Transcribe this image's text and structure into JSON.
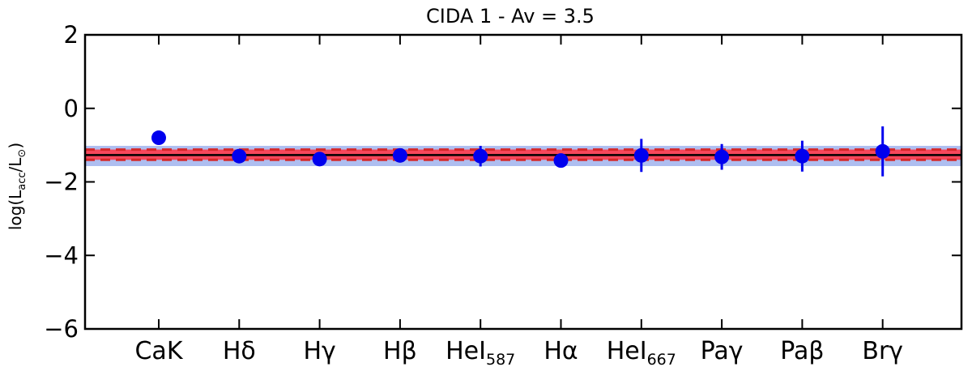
{
  "chart_data": {
    "type": "scatter",
    "title": "CIDA 1 - Av = 3.5",
    "ylabel": {
      "prefix": "log(L",
      "sub1": "acc",
      "mid": "/L",
      "sub2": "⊙",
      "suffix": ")"
    },
    "xlabel": "",
    "ylim": [
      -6,
      2
    ],
    "yticks": [
      2,
      0,
      -2,
      -4,
      -6
    ],
    "ytick_labels": [
      "2",
      "0",
      "−2",
      "−4",
      "−6"
    ],
    "categories": [
      {
        "main": "CaK",
        "sub": ""
      },
      {
        "main": "Hδ",
        "sub": ""
      },
      {
        "main": "Hγ",
        "sub": ""
      },
      {
        "main": "Hβ",
        "sub": ""
      },
      {
        "main": "HeI",
        "sub": "587"
      },
      {
        "main": "Hα",
        "sub": ""
      },
      {
        "main": "HeI",
        "sub": "667"
      },
      {
        "main": "Paγ",
        "sub": ""
      },
      {
        "main": "Paβ",
        "sub": ""
      },
      {
        "main": "Brγ",
        "sub": ""
      }
    ],
    "series": [
      {
        "values": [
          -0.8,
          -1.3,
          -1.38,
          -1.28,
          -1.3,
          -1.42,
          -1.28,
          -1.32,
          -1.3,
          -1.17
        ],
        "errors": [
          0.08,
          0.1,
          0.1,
          0.1,
          0.28,
          0.1,
          0.45,
          0.35,
          0.42,
          0.68
        ],
        "color": "#0000ee"
      }
    ],
    "reference": {
      "mean": -1.27,
      "band": [
        -1.57,
        -1.02
      ],
      "inner_band": [
        -1.4,
        -1.12
      ],
      "dashed": [
        -1.4,
        -1.12
      ],
      "mean_color": "#000000",
      "band_color": "#aebef0",
      "inner_color": "#ff3a4a",
      "dashed_color": "#d62828"
    }
  }
}
